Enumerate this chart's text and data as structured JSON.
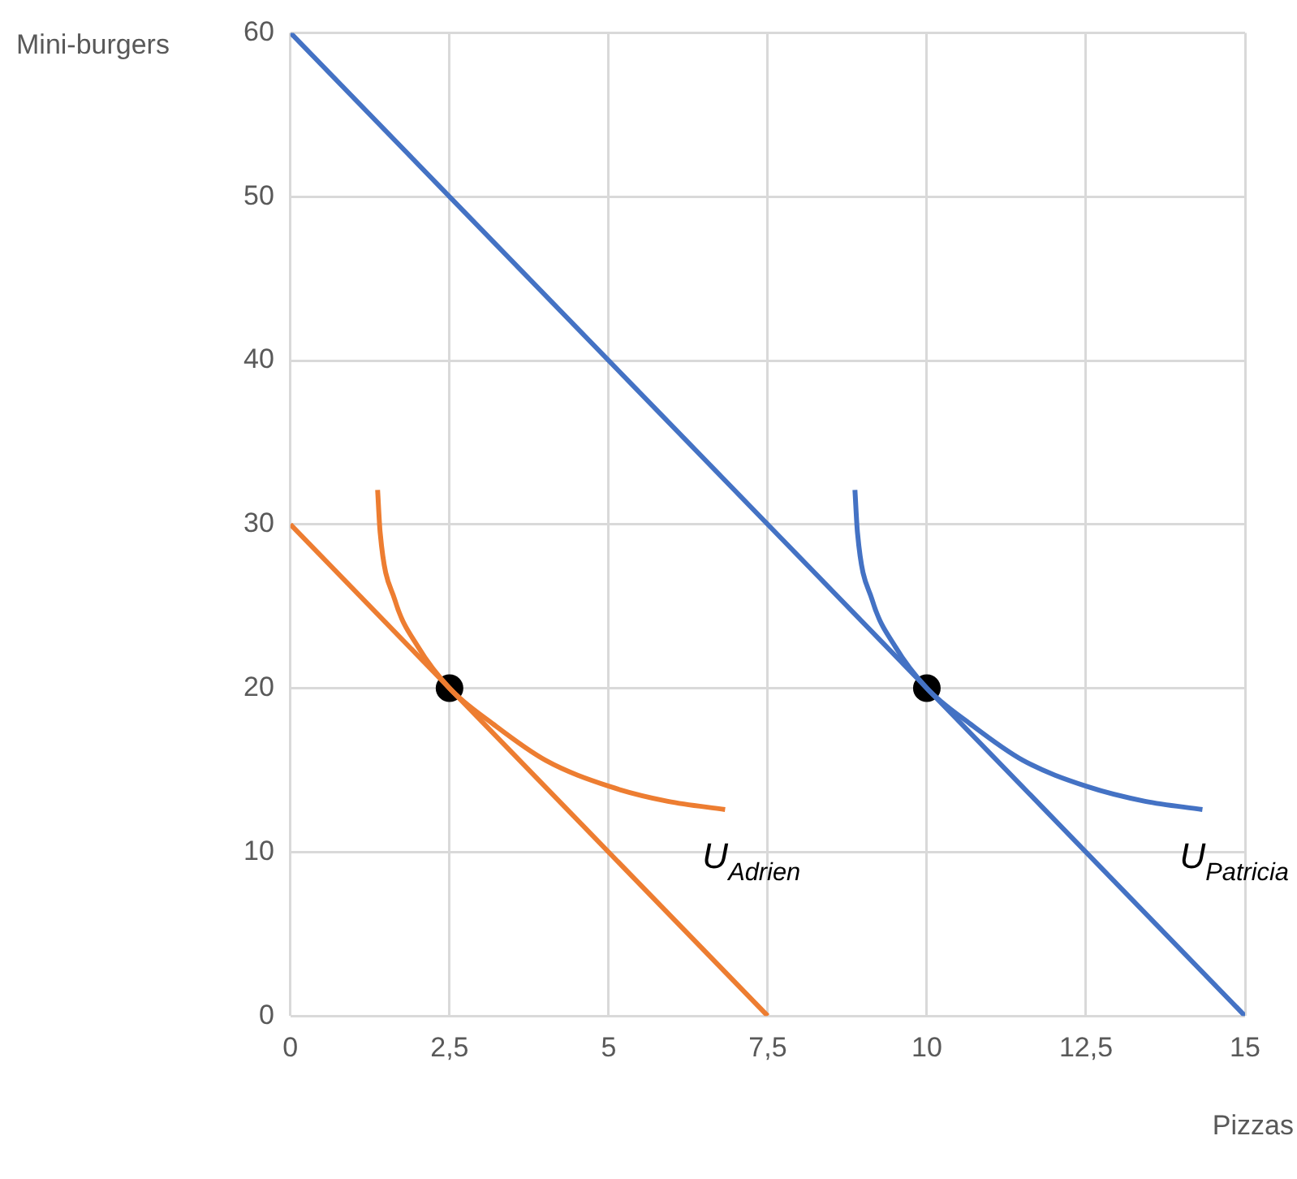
{
  "chart_data": {
    "type": "line",
    "xlabel": "Pizzas",
    "ylabel": "Mini-burgers",
    "xlim": [
      0,
      15
    ],
    "ylim": [
      0,
      60
    ],
    "xticks": [
      0,
      {
        "value": 2.5,
        "label": "2,5"
      },
      5,
      {
        "value": 7.5,
        "label": "7,5"
      },
      10,
      {
        "value": 12.5,
        "label": "12,5"
      },
      15
    ],
    "yticks": [
      0,
      10,
      20,
      30,
      40,
      50,
      60
    ],
    "grid": true,
    "legend": false,
    "series": [
      {
        "color": "#4472c4",
        "marker": "none",
        "x": [
          0,
          15
        ],
        "values": [
          60,
          0
        ]
      },
      {
        "color": "#ed7d31",
        "marker": "none",
        "x": [
          0,
          7.5
        ],
        "values": [
          30,
          0
        ]
      },
      {
        "name": "U$_{Adrien}$",
        "color": "#ed7d31",
        "marker": "none",
        "x": [
          1.37,
          1.41,
          1.64,
          2.01,
          2.5,
          3.19,
          4.01,
          5.02,
          5.93,
          6.83
        ],
        "values": [
          32.1,
          29.5,
          25.4,
          22.5,
          20,
          17.8,
          15.6,
          14.0,
          13.1,
          12.6
        ]
      },
      {
        "name": "U$_{Patricia}$",
        "color": "#4472c4",
        "marker": "none",
        "x": [
          8.87,
          8.91,
          9.14,
          9.51,
          10,
          10.69,
          11.51,
          12.52,
          13.43,
          14.33
        ],
        "values": [
          32.1,
          29.5,
          25.4,
          22.5,
          20,
          17.8,
          15.6,
          14.0,
          13.1,
          12.6
        ]
      },
      {
        "type": "scatter",
        "color": "#000000",
        "marker": "circle",
        "x": [
          2.5,
          10
        ],
        "values": [
          20,
          20
        ]
      }
    ]
  }
}
